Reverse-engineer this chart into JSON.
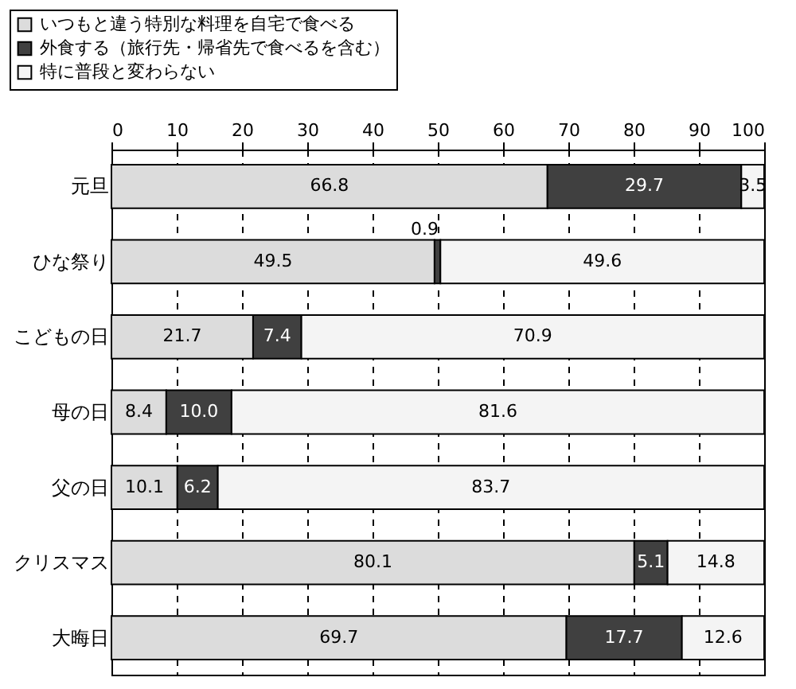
{
  "chart_data": {
    "type": "bar",
    "orientation": "horizontal",
    "stacked": true,
    "categories": [
      "元旦",
      "ひな祭り",
      "こどもの日",
      "母の日",
      "父の日",
      "クリスマス",
      "大晦日"
    ],
    "series": [
      {
        "name": "いつもと違う特別な料理を自宅で食べる",
        "color": "#dcdcdc",
        "values": [
          66.8,
          49.5,
          21.7,
          8.4,
          10.1,
          80.1,
          69.7
        ],
        "value_labels": [
          "66.8",
          "49.5",
          "21.7",
          "8.4",
          "10.1",
          "80.1",
          "69.7"
        ]
      },
      {
        "name": "外食する（旅行先・帰省先で食べるを含む）",
        "color": "#404040",
        "values": [
          29.7,
          0.9,
          7.4,
          10.0,
          6.2,
          5.1,
          17.7
        ],
        "value_labels": [
          "29.7",
          "0.9",
          "7.4",
          "10.0",
          "6.2",
          "5.1",
          "17.7"
        ]
      },
      {
        "name": "特に普段と変わらない",
        "color": "#f4f4f4",
        "values": [
          3.5,
          49.6,
          70.9,
          81.6,
          83.7,
          14.8,
          12.6
        ],
        "value_labels": [
          "3.5",
          "49.6",
          "70.9",
          "81.6",
          "83.7",
          "14.8",
          "12.6"
        ]
      }
    ],
    "xlim": [
      0,
      100
    ],
    "xticks": [
      0,
      10,
      20,
      30,
      40,
      50,
      60,
      70,
      80,
      90,
      100
    ],
    "grid": "x",
    "legend": "top left"
  }
}
